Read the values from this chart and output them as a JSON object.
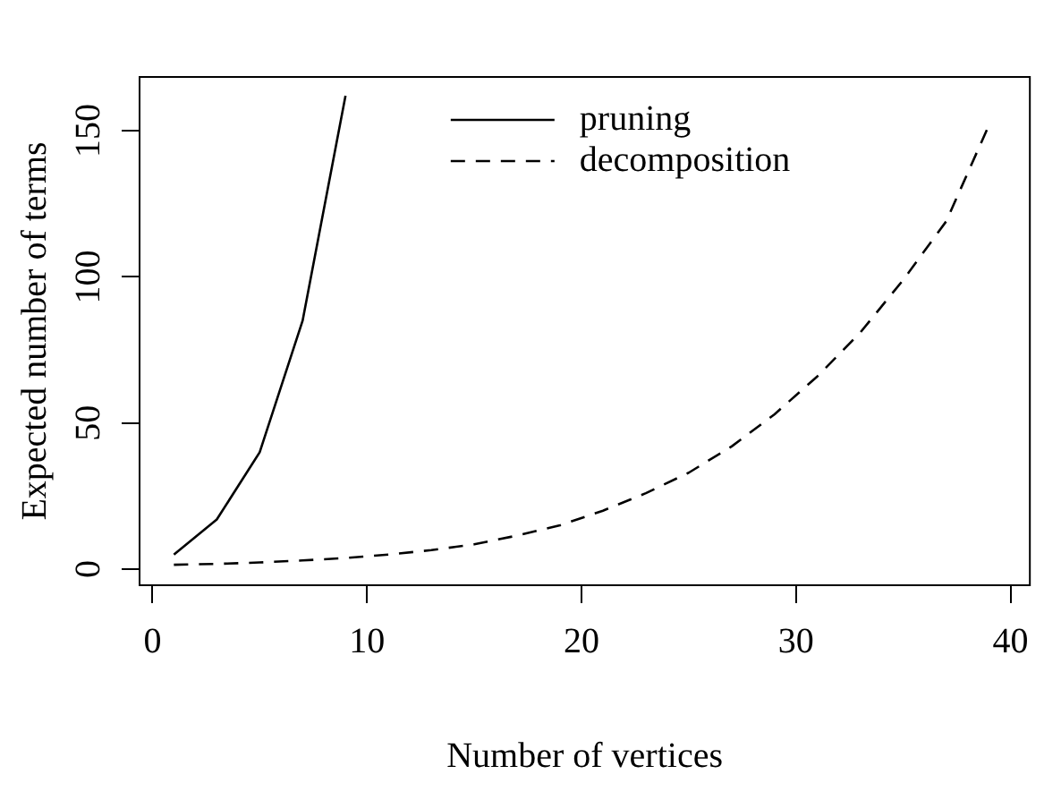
{
  "chart_data": {
    "type": "line",
    "xlabel": "Number of vertices",
    "ylabel": "Expected number of terms",
    "xlim": [
      -0.6,
      40.9
    ],
    "ylim": [
      -5.5,
      168.4
    ],
    "xticks": [
      0,
      10,
      20,
      30,
      40
    ],
    "yticks": [
      0,
      50,
      100,
      150
    ],
    "grid": false,
    "legend": "top",
    "marker": "none",
    "series": [
      {
        "name": "pruning",
        "color": "#000000",
        "line_style": "solid",
        "x": [
          1,
          3,
          5,
          7,
          9
        ],
        "values": [
          5,
          17,
          40,
          85,
          162
        ]
      },
      {
        "name": "decomposition",
        "color": "#000000",
        "line_style": "dashed",
        "x": [
          1,
          3,
          5,
          7,
          9,
          11,
          13,
          15,
          17,
          19,
          21,
          23,
          25,
          27,
          29,
          31,
          33,
          35,
          37,
          39
        ],
        "values": [
          1.5,
          1.8,
          2.3,
          3,
          3.8,
          5,
          6.5,
          8.5,
          11.5,
          15,
          20,
          26,
          33,
          42,
          53,
          66,
          81,
          99,
          119,
          152
        ]
      }
    ]
  }
}
